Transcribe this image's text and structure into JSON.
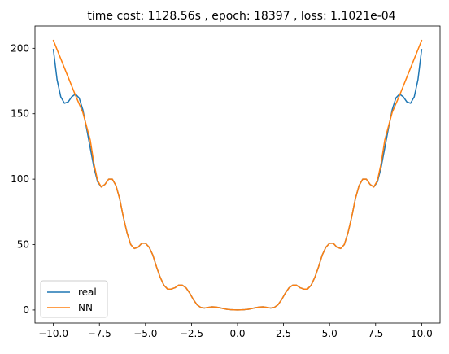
{
  "chart_data": {
    "type": "line",
    "title": "time cost: 1128.56s  ,  epoch: 18397  ,  loss: 1.1021e-04",
    "xlabel": "",
    "ylabel": "",
    "xlim": [
      -11,
      11
    ],
    "ylim": [
      -10,
      217
    ],
    "xticks": [
      -10,
      -7.5,
      -5,
      -2.5,
      0,
      2.5,
      5,
      7.5,
      10
    ],
    "xtick_labels": [
      "−10.0",
      "−7.5",
      "−5.0",
      "−2.5",
      "0.0",
      "2.5",
      "5.0",
      "7.5",
      "10.0"
    ],
    "yticks": [
      0,
      50,
      100,
      150,
      200
    ],
    "ytick_labels": [
      "0",
      "50",
      "100",
      "150",
      "200"
    ],
    "grid": false,
    "legend_position": "lower-left",
    "series": [
      {
        "name": "real",
        "color": "#1f77b4",
        "x": [
          -10.0,
          -9.8,
          -9.6,
          -9.4,
          -9.2,
          -9.0,
          -8.8,
          -8.6,
          -8.4,
          -8.2,
          -8.0,
          -7.8,
          -7.6,
          -7.4,
          -7.2,
          -7.0,
          -6.8,
          -6.6,
          -6.4,
          -6.2,
          -6.0,
          -5.8,
          -5.6,
          -5.4,
          -5.2,
          -5.0,
          -4.8,
          -4.6,
          -4.4,
          -4.2,
          -4.0,
          -3.8,
          -3.6,
          -3.4,
          -3.2,
          -3.0,
          -2.8,
          -2.6,
          -2.4,
          -2.2,
          -2.0,
          -1.8,
          -1.6,
          -1.4,
          -1.2,
          -1.0,
          -0.8,
          -0.6,
          -0.4,
          -0.2,
          0.0,
          0.2,
          0.4,
          0.6,
          0.8,
          1.0,
          1.2,
          1.4,
          1.6,
          1.8,
          2.0,
          2.2,
          2.4,
          2.6,
          2.8,
          3.0,
          3.2,
          3.4,
          3.6,
          3.8,
          4.0,
          4.2,
          4.4,
          4.6,
          4.8,
          5.0,
          5.2,
          5.4,
          5.6,
          5.8,
          6.0,
          6.2,
          6.4,
          6.6,
          6.8,
          7.0,
          7.2,
          7.4,
          7.6,
          7.8,
          8.0,
          8.2,
          8.4,
          8.6,
          8.8,
          9.0,
          9.2,
          9.4,
          9.6,
          9.8,
          10.0
        ],
        "y": [
          199,
          176,
          163,
          158,
          159,
          163,
          165,
          162,
          153,
          139,
          124,
          109,
          98,
          94,
          96,
          100,
          100,
          95,
          85,
          71,
          59,
          50,
          47,
          48,
          51,
          51,
          48,
          42,
          33,
          25,
          19,
          16,
          16,
          17,
          19,
          19,
          17,
          13,
          8,
          4,
          2,
          1.5,
          2,
          2.4,
          2.3,
          1.8,
          1.2,
          0.6,
          0.3,
          0.1,
          0,
          0.1,
          0.3,
          0.6,
          1.2,
          1.8,
          2.3,
          2.4,
          2,
          1.5,
          2,
          4,
          8,
          13,
          17,
          19,
          19,
          17,
          16,
          16,
          19,
          25,
          33,
          42,
          48,
          51,
          51,
          48,
          47,
          50,
          59,
          71,
          85,
          95,
          100,
          100,
          96,
          94,
          98,
          109,
          124,
          139,
          153,
          162,
          165,
          163,
          159,
          158,
          163,
          176,
          199
        ]
      },
      {
        "name": "NN",
        "color": "#ff7f0e",
        "x": [
          -10.0,
          -9.6,
          -9.2,
          -8.8,
          -8.4,
          -8.0,
          -7.8,
          -7.6,
          -7.4,
          -7.2,
          -7.0,
          -6.8,
          -6.6,
          -6.4,
          -6.2,
          -6.0,
          -5.8,
          -5.6,
          -5.4,
          -5.2,
          -5.0,
          -4.8,
          -4.6,
          -4.4,
          -4.2,
          -4.0,
          -3.8,
          -3.6,
          -3.4,
          -3.2,
          -3.0,
          -2.8,
          -2.6,
          -2.4,
          -2.2,
          -2.0,
          -1.8,
          -1.6,
          -1.4,
          -1.2,
          -1.0,
          -0.8,
          -0.6,
          -0.4,
          -0.2,
          0.0,
          0.2,
          0.4,
          0.6,
          0.8,
          1.0,
          1.2,
          1.4,
          1.6,
          1.8,
          2.0,
          2.2,
          2.4,
          2.6,
          2.8,
          3.0,
          3.2,
          3.4,
          3.6,
          3.8,
          4.0,
          4.2,
          4.4,
          4.6,
          4.8,
          5.0,
          5.2,
          5.4,
          5.6,
          5.8,
          6.0,
          6.2,
          6.4,
          6.6,
          6.8,
          7.0,
          7.2,
          7.4,
          7.6,
          7.8,
          8.0,
          8.4,
          8.8,
          9.2,
          9.6,
          10.0
        ],
        "y": [
          206,
          192,
          178,
          164,
          151,
          130,
          112,
          99,
          94,
          96,
          100,
          100,
          95,
          85,
          71,
          59,
          50,
          47,
          48,
          51,
          51,
          48,
          42,
          33,
          25,
          19,
          16,
          16,
          17,
          19,
          19,
          17,
          13,
          8,
          4,
          2,
          1.5,
          2,
          2.4,
          2.3,
          1.8,
          1.2,
          0.6,
          0.3,
          0.1,
          0,
          0.1,
          0.3,
          0.6,
          1.2,
          1.8,
          2.3,
          2.4,
          2,
          1.5,
          2,
          4,
          8,
          13,
          17,
          19,
          19,
          17,
          16,
          16,
          19,
          25,
          33,
          42,
          48,
          51,
          51,
          48,
          47,
          50,
          59,
          71,
          85,
          95,
          100,
          100,
          96,
          94,
          99,
          112,
          130,
          151,
          164,
          178,
          192,
          206
        ]
      }
    ]
  }
}
